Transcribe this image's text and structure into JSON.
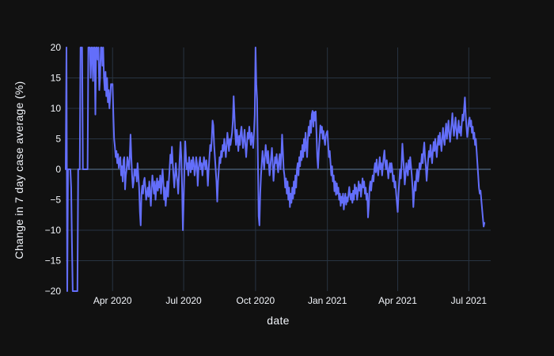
{
  "colors": {
    "background": "#111111",
    "grid": "#283442",
    "zero_line": "#44596e",
    "line": "#636efa",
    "text": "#f2f5fa"
  },
  "chart_data": {
    "type": "line",
    "title": "",
    "xlabel": "date",
    "ylabel": "Change in 7 day case average (%)",
    "legend": "none",
    "grid": true,
    "ylim": [
      -20,
      20
    ],
    "x_range": [
      "2020-02-01",
      "2021-07-29"
    ],
    "y_ticks": [
      {
        "value": 20,
        "label": "20"
      },
      {
        "value": 15,
        "label": "15"
      },
      {
        "value": 10,
        "label": "10"
      },
      {
        "value": 5,
        "label": "5"
      },
      {
        "value": 0,
        "label": "0"
      },
      {
        "value": -5,
        "label": "−5"
      },
      {
        "value": -10,
        "label": "−10"
      },
      {
        "value": -15,
        "label": "−15"
      },
      {
        "value": -20,
        "label": "−20"
      }
    ],
    "x_ticks": [
      {
        "date": "2020-04-01",
        "label": "Apr 2020"
      },
      {
        "date": "2020-07-01",
        "label": "Jul 2020"
      },
      {
        "date": "2020-10-01",
        "label": "Oct 2020"
      },
      {
        "date": "2021-01-01",
        "label": "Jan 2021"
      },
      {
        "date": "2021-04-01",
        "label": "Apr 2021"
      },
      {
        "date": "2021-07-01",
        "label": "Jul 2021"
      }
    ],
    "series": [
      {
        "name": "Change in 7 day case average (%)",
        "color": "#636efa",
        "x_start_date": "2020-02-01",
        "daily_values": [
          0,
          20,
          -20,
          0,
          0,
          0,
          0,
          -3,
          -12,
          -20,
          -20,
          -20,
          -20,
          -20,
          -20,
          -20,
          0,
          0,
          0,
          20,
          20,
          20,
          0,
          0,
          0,
          0,
          0,
          0,
          0,
          20,
          20,
          20,
          15,
          20,
          20,
          14.5,
          20,
          20,
          9,
          20,
          20,
          18,
          20,
          13,
          15,
          20,
          20,
          17,
          20,
          15,
          13,
          16,
          12,
          15,
          11,
          13,
          10,
          12,
          14,
          13.8,
          14,
          9,
          5,
          3.7,
          2,
          3,
          1,
          2.5,
          0.2,
          1.5,
          2,
          -1,
          0.5,
          -2,
          1.5,
          2,
          -3.3,
          -1,
          0,
          2,
          1,
          0,
          2,
          5.7,
          2,
          -1,
          -3,
          -2,
          0,
          -1,
          0,
          -2,
          1,
          -1,
          -3,
          -7,
          -9.2,
          -4,
          -2.7,
          -4,
          -2,
          -1.4,
          -3,
          -5,
          -4,
          -3,
          -4.5,
          -2,
          -4,
          -6,
          -3,
          -1,
          -2.5,
          -4,
          -2,
          -5,
          -3,
          -1.5,
          -3.5,
          -2,
          -3,
          -1,
          -4,
          -2,
          0,
          -2,
          -5,
          -3,
          -6,
          -4,
          -2,
          -4.5,
          -2,
          0,
          2.4,
          1,
          3.7,
          1,
          -1,
          -3,
          -1,
          1,
          -1,
          -2,
          -4,
          -1,
          2,
          4.5,
          2,
          -3,
          -10,
          -5,
          0,
          4.6,
          2,
          0,
          1,
          -1,
          2,
          0.5,
          -0.5,
          1.5,
          0,
          2,
          1,
          -1,
          0,
          2,
          1,
          -2.7,
          0,
          1,
          2,
          0,
          1,
          -1,
          0.5,
          2,
          1,
          0,
          1.5,
          0,
          -2.7,
          0,
          2,
          4,
          3,
          5,
          8,
          7.2,
          4,
          2,
          0,
          -2,
          -5.3,
          -2,
          0,
          2,
          1,
          3,
          2,
          4,
          3,
          5,
          3.5,
          2,
          4,
          6,
          4.5,
          3,
          5,
          4,
          5,
          6,
          8,
          12,
          9,
          6,
          4,
          6.5,
          5,
          3,
          5.5,
          4,
          6,
          7,
          5,
          3.5,
          5,
          6.5,
          4,
          2,
          4,
          6,
          5,
          7,
          5.5,
          4,
          6,
          5,
          3.5,
          6,
          9,
          20,
          14,
          11.5,
          2,
          -7.7,
          -9.2,
          -4,
          -1,
          1,
          3,
          1.5,
          0,
          2,
          4,
          2.5,
          1,
          3,
          1,
          -1,
          0.5,
          2,
          3.5,
          1,
          -1.9,
          0,
          2,
          1,
          2.5,
          0.5,
          -0.5,
          1.5,
          2.5,
          0,
          2,
          5.7,
          3,
          0,
          -1,
          -3,
          -1.5,
          -4,
          -2,
          -5,
          -3,
          -6.2,
          -4,
          -5.5,
          -3,
          -4.8,
          -2,
          -4,
          -1,
          -3,
          0,
          1,
          -1,
          2,
          0.5,
          3,
          1.5,
          4,
          2,
          5,
          3,
          6,
          4,
          2,
          5,
          7,
          5.5,
          8,
          6,
          9,
          9.6,
          7,
          9.4,
          8,
          9.5,
          6,
          2,
          0.2,
          3,
          5,
          7.2,
          6,
          7,
          5,
          6.3,
          5,
          4,
          5.5,
          6,
          6.3,
          4,
          2,
          3,
          1,
          -1,
          0.5,
          -2,
          -1,
          -3.6,
          -2,
          -4.2,
          -2.3,
          -4,
          -3,
          -5,
          -4,
          -6,
          -4.5,
          -5.5,
          -4,
          -6.6,
          -5,
          -4,
          -5.8,
          -4.6,
          -5.3,
          -4,
          -2.9,
          -4.4,
          -5,
          -4,
          -5.5,
          -3.5,
          -5,
          -2.5,
          -4,
          -3,
          -5,
          -4,
          -2,
          -3.5,
          -2.5,
          -4.5,
          -3,
          -1.5,
          -3,
          -2,
          -4,
          -3,
          -5,
          -4,
          -7.9,
          -6,
          -3,
          -2,
          -3.5,
          -2,
          -1,
          -2,
          0,
          1,
          -0.5,
          1.6,
          0,
          -1,
          0.5,
          2,
          0,
          1,
          -1,
          0.5,
          2,
          3.1,
          1,
          0,
          1.5,
          0,
          -1.5,
          0,
          1,
          -0.5,
          1,
          0,
          -2,
          -1,
          -3,
          -2,
          -4,
          -5.5,
          -7,
          -4,
          -2,
          0,
          -1.5,
          1,
          4.2,
          2,
          0,
          -2.5,
          -1,
          1,
          0,
          -1,
          1.5,
          0,
          2,
          0.5,
          -1,
          -3,
          -6.2,
          -4,
          -2,
          -3.5,
          -1,
          0,
          -2,
          -1,
          1,
          0,
          1,
          2.5,
          1,
          3,
          4.4,
          2,
          0.5,
          -1.9,
          0,
          1.6,
          3,
          2,
          4,
          2.5,
          1,
          3,
          4.5,
          3,
          5,
          3.5,
          2,
          4,
          5.5,
          4,
          6,
          4.5,
          3,
          5,
          6.8,
          5,
          4,
          6,
          7.5,
          5,
          6.5,
          8,
          6,
          4.5,
          6,
          7.5,
          9.2,
          7,
          5.5,
          7,
          8.5,
          6.5,
          5,
          6.5,
          8,
          6,
          7,
          5.5,
          7.5,
          9,
          8,
          10,
          11.8,
          9,
          7,
          5.3,
          6.5,
          8,
          8.5,
          7,
          8,
          6,
          7,
          5,
          6,
          4,
          5,
          3,
          1,
          -1,
          -3,
          -4,
          -3.5,
          -5,
          -6.5,
          -8,
          -9.4,
          -8.8
        ]
      }
    ]
  }
}
